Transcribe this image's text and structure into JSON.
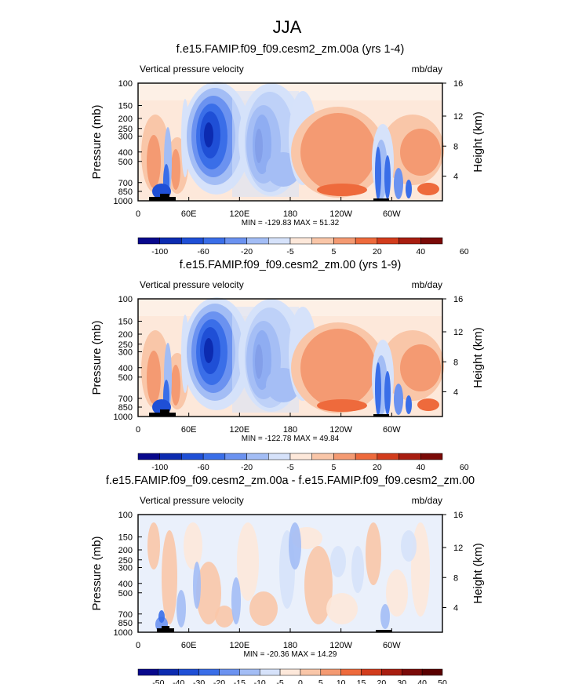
{
  "figure": {
    "title": "JJA"
  },
  "colors": {
    "ramp_11": [
      "#08088c",
      "#0c2bb0",
      "#1f4fd6",
      "#3a6ee8",
      "#6b92f0",
      "#a3bdf5",
      "#d6e2fa",
      "#fde8da",
      "#f9c6a8",
      "#f49a72",
      "#ee6a3c",
      "#d23c1c",
      "#a81d10",
      "#7a0a08"
    ],
    "diff_ramp": [
      "#08088c",
      "#0c2bb0",
      "#1f4fd6",
      "#3a6ee8",
      "#6b92f0",
      "#a3bdf5",
      "#d6e2fa",
      "#fde8da",
      "#f9c6a8",
      "#f49a72",
      "#ee6a3c",
      "#d23c1c",
      "#a81d10",
      "#7a0a08",
      "#5a0000"
    ]
  },
  "chart_data": [
    {
      "type": "heatmap",
      "title": "f.e15.FAMIP.f09_f09.cesm2_zm.00a (yrs 1-4)",
      "left_label": "Vertical pressure velocity",
      "right_label": "mb/day",
      "ylabel": "Pressure (mb)",
      "y2label": "Height (km)",
      "x_ticks": [
        "0",
        "60E",
        "120E",
        "180",
        "120W",
        "60W"
      ],
      "y_ticks": [
        "100",
        "150",
        "200",
        "250",
        "300",
        "400",
        "500",
        "700",
        "850",
        "1000"
      ],
      "y2_ticks": [
        "16",
        "12",
        "8",
        "4"
      ],
      "stats": "MIN = -129.83  MAX =  51.32",
      "colorbar_labels": [
        "-100",
        "-60",
        "-20",
        "-5",
        "5",
        "20",
        "40",
        "60"
      ]
    },
    {
      "type": "heatmap",
      "title": "f.e15.FAMIP.f09_f09.cesm2_zm.00 (yrs 1-9)",
      "left_label": "Vertical pressure velocity",
      "right_label": "mb/day",
      "ylabel": "Pressure (mb)",
      "y2label": "Height (km)",
      "x_ticks": [
        "0",
        "60E",
        "120E",
        "180",
        "120W",
        "60W"
      ],
      "y_ticks": [
        "100",
        "150",
        "200",
        "250",
        "300",
        "400",
        "500",
        "700",
        "850",
        "1000"
      ],
      "y2_ticks": [
        "16",
        "12",
        "8",
        "4"
      ],
      "stats": "MIN = -122.78  MAX =  49.84",
      "colorbar_labels": [
        "-100",
        "-60",
        "-20",
        "-5",
        "5",
        "20",
        "40",
        "60"
      ]
    },
    {
      "type": "heatmap",
      "title": "f.e15.FAMIP.f09_f09.cesm2_zm.00a - f.e15.FAMIP.f09_f09.cesm2_zm.00",
      "left_label": "Vertical pressure velocity",
      "right_label": "mb/day",
      "ylabel": "Pressure (mb)",
      "y2label": "Height (km)",
      "x_ticks": [
        "0",
        "60E",
        "120E",
        "180",
        "120W",
        "60W"
      ],
      "y_ticks": [
        "100",
        "150",
        "200",
        "250",
        "300",
        "400",
        "500",
        "700",
        "850",
        "1000"
      ],
      "y2_ticks": [
        "16",
        "12",
        "8",
        "4"
      ],
      "stats": "MIN = -20.36  MAX =  14.29",
      "colorbar_labels": [
        "-50",
        "-40",
        "-30",
        "-20",
        "-15",
        "-10",
        "-5",
        "0",
        "5",
        "10",
        "15",
        "20",
        "30",
        "40",
        "50"
      ]
    }
  ]
}
